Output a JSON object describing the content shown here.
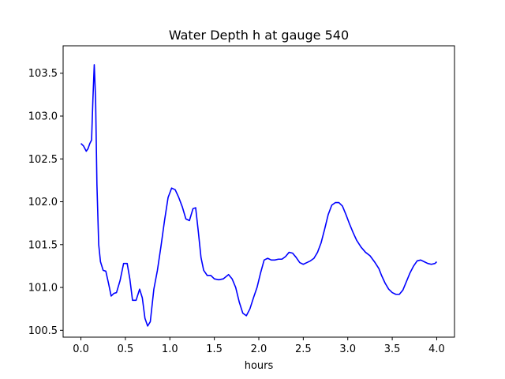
{
  "chart_data": {
    "type": "line",
    "title": "Water Depth h at gauge 540",
    "xlabel": "hours",
    "ylabel": "",
    "xlim": [
      -0.2,
      4.2
    ],
    "ylim": [
      100.42,
      103.82
    ],
    "xticks": [
      0.0,
      0.5,
      1.0,
      1.5,
      2.0,
      2.5,
      3.0,
      3.5,
      4.0
    ],
    "xtick_labels": [
      "0.0",
      "0.5",
      "1.0",
      "1.5",
      "2.0",
      "2.5",
      "3.0",
      "3.5",
      "4.0"
    ],
    "yticks": [
      100.5,
      101.0,
      101.5,
      102.0,
      102.5,
      103.0,
      103.5
    ],
    "ytick_labels": [
      "100.5",
      "101.0",
      "101.5",
      "102.0",
      "102.5",
      "103.0",
      "103.5"
    ],
    "grid": false,
    "legend": "none",
    "series": [
      {
        "color": "#0000ff",
        "x": [
          0.0,
          0.03,
          0.06,
          0.08,
          0.1,
          0.12,
          0.135,
          0.15,
          0.165,
          0.18,
          0.2,
          0.22,
          0.25,
          0.28,
          0.31,
          0.34,
          0.37,
          0.4,
          0.44,
          0.48,
          0.52,
          0.55,
          0.58,
          0.62,
          0.66,
          0.69,
          0.72,
          0.75,
          0.78,
          0.82,
          0.86,
          0.9,
          0.94,
          0.98,
          1.02,
          1.06,
          1.1,
          1.14,
          1.18,
          1.22,
          1.26,
          1.29,
          1.32,
          1.35,
          1.38,
          1.42,
          1.46,
          1.5,
          1.55,
          1.6,
          1.66,
          1.7,
          1.74,
          1.78,
          1.82,
          1.86,
          1.9,
          1.94,
          1.98,
          2.02,
          2.06,
          2.1,
          2.14,
          2.18,
          2.22,
          2.26,
          2.3,
          2.34,
          2.38,
          2.42,
          2.46,
          2.5,
          2.54,
          2.58,
          2.62,
          2.66,
          2.7,
          2.74,
          2.78,
          2.82,
          2.86,
          2.9,
          2.94,
          2.98,
          3.02,
          3.06,
          3.1,
          3.15,
          3.2,
          3.25,
          3.3,
          3.35,
          3.38,
          3.42,
          3.46,
          3.5,
          3.54,
          3.58,
          3.62,
          3.66,
          3.7,
          3.74,
          3.78,
          3.82,
          3.86,
          3.9,
          3.94,
          3.98,
          4.0
        ],
        "y": [
          102.68,
          102.65,
          102.59,
          102.62,
          102.68,
          102.72,
          103.2,
          103.6,
          103.2,
          102.2,
          101.5,
          101.3,
          101.2,
          101.19,
          101.05,
          100.9,
          100.93,
          100.94,
          101.08,
          101.28,
          101.28,
          101.1,
          100.85,
          100.85,
          100.98,
          100.88,
          100.64,
          100.55,
          100.6,
          100.98,
          101.2,
          101.48,
          101.78,
          102.05,
          102.16,
          102.14,
          102.05,
          101.94,
          101.8,
          101.78,
          101.92,
          101.93,
          101.65,
          101.35,
          101.2,
          101.14,
          101.14,
          101.1,
          101.09,
          101.1,
          101.15,
          101.1,
          101.0,
          100.83,
          100.7,
          100.67,
          100.75,
          100.88,
          101.0,
          101.17,
          101.32,
          101.34,
          101.32,
          101.32,
          101.33,
          101.33,
          101.36,
          101.41,
          101.4,
          101.35,
          101.29,
          101.27,
          101.29,
          101.31,
          101.34,
          101.41,
          101.52,
          101.68,
          101.85,
          101.96,
          101.99,
          101.99,
          101.95,
          101.85,
          101.74,
          101.64,
          101.55,
          101.47,
          101.41,
          101.37,
          101.3,
          101.22,
          101.14,
          101.05,
          100.98,
          100.94,
          100.92,
          100.92,
          100.97,
          101.07,
          101.17,
          101.25,
          101.31,
          101.32,
          101.3,
          101.28,
          101.27,
          101.28,
          101.3
        ]
      }
    ]
  }
}
